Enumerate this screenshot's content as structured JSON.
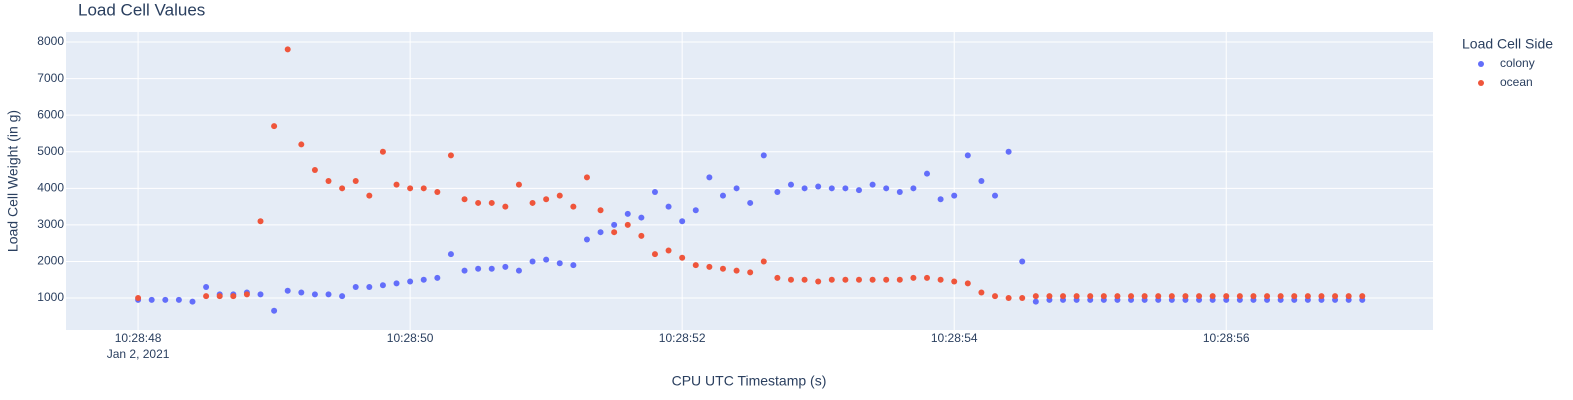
{
  "chart_data": {
    "type": "scatter",
    "title": "Load Cell Values",
    "x_title": "CPU UTC Timestamp (s)",
    "y_title": "Load Cell Weight (in g)",
    "legend_title": "Load Cell Side",
    "legend_position": "right",
    "x": [
      "2021-01-02T10:28:48.0",
      "2021-01-02T10:28:48.1",
      "2021-01-02T10:28:48.2",
      "2021-01-02T10:28:48.3",
      "2021-01-02T10:28:48.4",
      "2021-01-02T10:28:48.5",
      "2021-01-02T10:28:48.6",
      "2021-01-02T10:28:48.7",
      "2021-01-02T10:28:48.8",
      "2021-01-02T10:28:48.9",
      "2021-01-02T10:28:49.0",
      "2021-01-02T10:28:49.1",
      "2021-01-02T10:28:49.2",
      "2021-01-02T10:28:49.3",
      "2021-01-02T10:28:49.4",
      "2021-01-02T10:28:49.5",
      "2021-01-02T10:28:49.6",
      "2021-01-02T10:28:49.7",
      "2021-01-02T10:28:49.8",
      "2021-01-02T10:28:49.9",
      "2021-01-02T10:28:50.0",
      "2021-01-02T10:28:50.1",
      "2021-01-02T10:28:50.2",
      "2021-01-02T10:28:50.3",
      "2021-01-02T10:28:50.4",
      "2021-01-02T10:28:50.5",
      "2021-01-02T10:28:50.6",
      "2021-01-02T10:28:50.7",
      "2021-01-02T10:28:50.8",
      "2021-01-02T10:28:50.9",
      "2021-01-02T10:28:51.0",
      "2021-01-02T10:28:51.1",
      "2021-01-02T10:28:51.2",
      "2021-01-02T10:28:51.3",
      "2021-01-02T10:28:51.4",
      "2021-01-02T10:28:51.5",
      "2021-01-02T10:28:51.6",
      "2021-01-02T10:28:51.7",
      "2021-01-02T10:28:51.8",
      "2021-01-02T10:28:51.9",
      "2021-01-02T10:28:52.0",
      "2021-01-02T10:28:52.1",
      "2021-01-02T10:28:52.2",
      "2021-01-02T10:28:52.3",
      "2021-01-02T10:28:52.4",
      "2021-01-02T10:28:52.5",
      "2021-01-02T10:28:52.6",
      "2021-01-02T10:28:52.7",
      "2021-01-02T10:28:52.8",
      "2021-01-02T10:28:52.9",
      "2021-01-02T10:28:53.0",
      "2021-01-02T10:28:53.1",
      "2021-01-02T10:28:53.2",
      "2021-01-02T10:28:53.3",
      "2021-01-02T10:28:53.4",
      "2021-01-02T10:28:53.5",
      "2021-01-02T10:28:53.6",
      "2021-01-02T10:28:53.7",
      "2021-01-02T10:28:53.8",
      "2021-01-02T10:28:53.9",
      "2021-01-02T10:28:54.0",
      "2021-01-02T10:28:54.1",
      "2021-01-02T10:28:54.2",
      "2021-01-02T10:28:54.3",
      "2021-01-02T10:28:54.4",
      "2021-01-02T10:28:54.5",
      "2021-01-02T10:28:54.6",
      "2021-01-02T10:28:54.7",
      "2021-01-02T10:28:54.8",
      "2021-01-02T10:28:54.9",
      "2021-01-02T10:28:55.0",
      "2021-01-02T10:28:55.1",
      "2021-01-02T10:28:55.2",
      "2021-01-02T10:28:55.3",
      "2021-01-02T10:28:55.4",
      "2021-01-02T10:28:55.5",
      "2021-01-02T10:28:55.6",
      "2021-01-02T10:28:55.7",
      "2021-01-02T10:28:55.8",
      "2021-01-02T10:28:55.9",
      "2021-01-02T10:28:56.0",
      "2021-01-02T10:28:56.1",
      "2021-01-02T10:28:56.2",
      "2021-01-02T10:28:56.3",
      "2021-01-02T10:28:56.4",
      "2021-01-02T10:28:56.5",
      "2021-01-02T10:28:56.6",
      "2021-01-02T10:28:56.7",
      "2021-01-02T10:28:56.8",
      "2021-01-02T10:28:56.9",
      "2021-01-02T10:28:57.0"
    ],
    "series": [
      {
        "name": "colony",
        "color": "#636efa",
        "values": [
          950,
          950,
          950,
          950,
          900,
          1300,
          1100,
          1100,
          1150,
          1100,
          650,
          1200,
          1150,
          1100,
          1100,
          1050,
          1300,
          1300,
          1350,
          1400,
          1450,
          1500,
          1550,
          2200,
          1750,
          1800,
          1800,
          1850,
          1750,
          2000,
          2050,
          1950,
          1900,
          2600,
          2800,
          3000,
          3300,
          3200,
          3900,
          3500,
          3100,
          3400,
          4300,
          3800,
          4000,
          3600,
          4900,
          3900,
          4100,
          4000,
          4050,
          4000,
          4000,
          3950,
          4100,
          4000,
          3900,
          4000,
          4400,
          3700,
          3800,
          4900,
          4200,
          3800,
          5000,
          2000,
          900,
          950,
          950,
          950,
          950,
          950,
          950,
          950,
          950,
          950,
          950,
          950,
          950,
          950,
          950,
          950,
          950,
          950,
          950,
          950,
          950,
          950,
          950,
          950,
          950
        ]
      },
      {
        "name": "ocean",
        "color": "#ef553b",
        "values": [
          1000,
          null,
          null,
          null,
          null,
          1050,
          1050,
          1050,
          1100,
          3100,
          5700,
          7800,
          5200,
          4500,
          4200,
          4000,
          4200,
          3800,
          5000,
          4100,
          4000,
          4000,
          3900,
          4900,
          3700,
          3600,
          3600,
          3500,
          4100,
          3600,
          3700,
          3800,
          3500,
          4300,
          3400,
          2800,
          3000,
          2700,
          2200,
          2300,
          2100,
          1900,
          1850,
          1800,
          1750,
          1700,
          2000,
          1550,
          1500,
          1500,
          1450,
          1500,
          1500,
          1500,
          1500,
          1500,
          1500,
          1550,
          1550,
          1500,
          1450,
          1400,
          1150,
          1050,
          1000,
          1000,
          1050,
          1050,
          1050,
          1050,
          1050,
          1050,
          1050,
          1050,
          1050,
          1050,
          1050,
          1050,
          1050,
          1050,
          1050,
          1050,
          1050,
          1050,
          1050,
          1050,
          1050,
          1050,
          1050,
          1050,
          1050
        ]
      }
    ],
    "xlim": [
      "2021-01-02T10:28:47.47",
      "2021-01-02T10:28:57.52"
    ],
    "xticks": [
      {
        "value": "2021-01-02T10:28:48",
        "label": "10:28:48"
      },
      {
        "value": "2021-01-02T10:28:50",
        "label": "10:28:50"
      },
      {
        "value": "2021-01-02T10:28:52",
        "label": "10:28:52"
      },
      {
        "value": "2021-01-02T10:28:54",
        "label": "10:28:54"
      },
      {
        "value": "2021-01-02T10:28:56",
        "label": "10:28:56"
      }
    ],
    "x_date_label": "Jan 2, 2021",
    "ylim": [
      125,
      8275
    ],
    "yticks": [
      1000,
      2000,
      3000,
      4000,
      5000,
      6000,
      7000,
      8000
    ],
    "grid": true
  }
}
